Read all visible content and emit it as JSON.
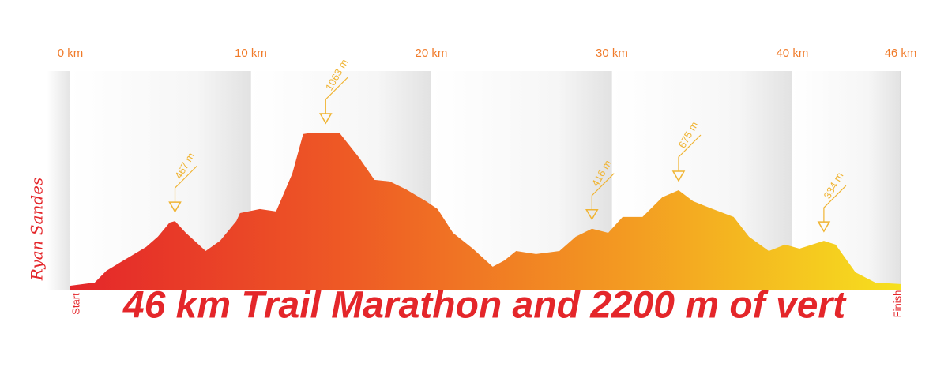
{
  "chart_data": {
    "type": "area",
    "title": "46 km Trail Marathon and 2200 m of vert",
    "brand": "Ryan Sandes",
    "start_label": "Start",
    "finish_label": "Finish",
    "x": [
      0,
      1.35,
      2,
      3.1,
      4.2,
      4.85,
      5.5,
      5.8,
      6.4,
      7.5,
      8.3,
      9.2,
      9.4,
      10.5,
      11.4,
      12.3,
      12.9,
      13.4,
      14.9,
      16,
      16.85,
      17.7,
      18.6,
      19.7,
      20.35,
      21.2,
      22.3,
      23.4,
      24.05,
      24.7,
      25.8,
      27.1,
      28,
      28.9,
      29.8,
      30.6,
      31.7,
      32.8,
      33.7,
      34.5,
      35.6,
      36.75,
      37.6,
      38.7,
      39.6,
      40.4,
      41.75,
      42.4,
      43.5,
      44.6,
      46
    ],
    "values": [
      32,
      53,
      133,
      213,
      293,
      362,
      457,
      467,
      388,
      266,
      335,
      468,
      521,
      548,
      532,
      787,
      1053,
      1063,
      1063,
      894,
      745,
      734,
      681,
      601,
      548,
      388,
      282,
      160,
      202,
      266,
      245,
      266,
      362,
      416,
      388,
      495,
      495,
      628,
      675,
      601,
      548,
      495,
      362,
      266,
      309,
      282,
      334,
      309,
      122,
      53,
      43
    ],
    "xlim": [
      0,
      46
    ],
    "xticks": [
      {
        "value": 0,
        "label": "0 km"
      },
      {
        "value": 10,
        "label": "10 km"
      },
      {
        "value": 20,
        "label": "20 km"
      },
      {
        "value": 30,
        "label": "30 km"
      },
      {
        "value": 40,
        "label": "40 km"
      },
      {
        "value": 46,
        "label": "46 km"
      }
    ],
    "annotations": [
      {
        "x": 5.8,
        "value": 467,
        "label": "467 m"
      },
      {
        "x": 14.15,
        "value": 1063,
        "label": "1063 m"
      },
      {
        "x": 28.9,
        "value": 416,
        "label": "416 m"
      },
      {
        "x": 33.7,
        "value": 675,
        "label": "675 m"
      },
      {
        "x": 41.75,
        "value": 334,
        "label": "334 m"
      }
    ],
    "colors": [
      "#e4262a",
      "#ee5a25",
      "#f39a22",
      "#f6e01e"
    ],
    "annotation_color": "#f0b433",
    "tick_color": "#f07b2a",
    "title_color": "#e4262a"
  }
}
